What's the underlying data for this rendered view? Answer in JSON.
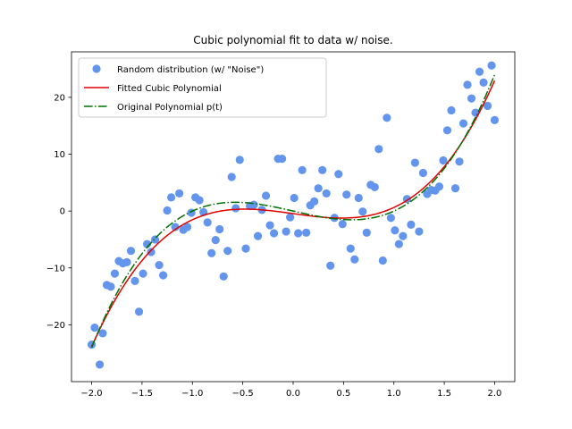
{
  "chart_data": {
    "type": "scatter",
    "title": "Cubic polynomial fit to data w/ noise.",
    "xlabel": "",
    "ylabel": "",
    "xlim": [
      -2.2,
      2.2
    ],
    "ylim": [
      -30,
      28
    ],
    "grid": false,
    "legend_position": "upper-left",
    "x_ticks": [
      -2.0,
      -1.5,
      -1.0,
      -0.5,
      0.0,
      0.5,
      1.0,
      1.5,
      2.0
    ],
    "x_tick_labels": [
      "−2.0",
      "−1.5",
      "−1.0",
      "−0.5",
      "0.0",
      "0.5",
      "1.0",
      "1.5",
      "2.0"
    ],
    "y_ticks": [
      -20,
      -10,
      0,
      10,
      20
    ],
    "y_tick_labels": [
      "−20",
      "−10",
      "0",
      "10",
      "20"
    ],
    "scatter": {
      "name": "Random distribution (w/ \"Noise\")",
      "color": "#6495ED",
      "points": [
        [
          -2.0,
          -23.5
        ],
        [
          -1.97,
          -20.5
        ],
        [
          -1.92,
          -27.0
        ],
        [
          -1.89,
          -21.5
        ],
        [
          -1.85,
          -13.0
        ],
        [
          -1.81,
          -13.3
        ],
        [
          -1.77,
          -11.0
        ],
        [
          -1.73,
          -8.8
        ],
        [
          -1.69,
          -9.2
        ],
        [
          -1.65,
          -9.0
        ],
        [
          -1.61,
          -7.0
        ],
        [
          -1.57,
          -12.3
        ],
        [
          -1.53,
          -17.7
        ],
        [
          -1.49,
          -11.0
        ],
        [
          -1.45,
          -5.8
        ],
        [
          -1.41,
          -7.2
        ],
        [
          -1.37,
          -5.0
        ],
        [
          -1.33,
          -9.5
        ],
        [
          -1.29,
          -11.3
        ],
        [
          -1.25,
          0.1
        ],
        [
          -1.21,
          2.4
        ],
        [
          -1.17,
          -2.8
        ],
        [
          -1.13,
          3.1
        ],
        [
          -1.09,
          -3.3
        ],
        [
          -1.05,
          -2.8
        ],
        [
          -1.01,
          -0.3
        ],
        [
          -0.97,
          2.4
        ],
        [
          -0.93,
          1.9
        ],
        [
          -0.89,
          -0.2
        ],
        [
          -0.85,
          -2.0
        ],
        [
          -0.81,
          -7.4
        ],
        [
          -0.77,
          -5.1
        ],
        [
          -0.73,
          -3.2
        ],
        [
          -0.69,
          -11.5
        ],
        [
          -0.65,
          -7.0
        ],
        [
          -0.61,
          6.0
        ],
        [
          -0.57,
          0.5
        ],
        [
          -0.53,
          9.0
        ],
        [
          -0.47,
          -6.6
        ],
        [
          -0.43,
          0.9
        ],
        [
          -0.39,
          1.1
        ],
        [
          -0.35,
          -4.4
        ],
        [
          -0.31,
          0.2
        ],
        [
          -0.27,
          2.7
        ],
        [
          -0.23,
          -2.5
        ],
        [
          -0.19,
          -3.9
        ],
        [
          -0.15,
          9.2
        ],
        [
          -0.11,
          9.2
        ],
        [
          -0.07,
          -3.6
        ],
        [
          -0.03,
          -1.1
        ],
        [
          0.01,
          2.3
        ],
        [
          0.05,
          -3.9
        ],
        [
          0.09,
          7.2
        ],
        [
          0.13,
          -3.8
        ],
        [
          0.17,
          1.0
        ],
        [
          0.21,
          1.7
        ],
        [
          0.25,
          4.0
        ],
        [
          0.29,
          7.2
        ],
        [
          0.33,
          3.1
        ],
        [
          0.37,
          -9.6
        ],
        [
          0.41,
          -1.2
        ],
        [
          0.45,
          6.5
        ],
        [
          0.49,
          -2.3
        ],
        [
          0.53,
          2.9
        ],
        [
          0.57,
          -6.6
        ],
        [
          0.61,
          -8.5
        ],
        [
          0.65,
          2.3
        ],
        [
          0.69,
          -0.1
        ],
        [
          0.73,
          -3.8
        ],
        [
          0.77,
          4.6
        ],
        [
          0.81,
          4.2
        ],
        [
          0.85,
          10.9
        ],
        [
          0.89,
          -8.7
        ],
        [
          0.93,
          16.4
        ],
        [
          0.97,
          -1.2
        ],
        [
          1.01,
          -3.4
        ],
        [
          1.05,
          -5.8
        ],
        [
          1.09,
          -4.4
        ],
        [
          1.13,
          2.1
        ],
        [
          1.17,
          -2.4
        ],
        [
          1.21,
          8.5
        ],
        [
          1.25,
          -3.6
        ],
        [
          1.29,
          6.7
        ],
        [
          1.33,
          3.0
        ],
        [
          1.37,
          3.7
        ],
        [
          1.41,
          3.6
        ],
        [
          1.45,
          4.3
        ],
        [
          1.49,
          8.9
        ],
        [
          1.53,
          14.2
        ],
        [
          1.57,
          17.7
        ],
        [
          1.61,
          4.0
        ],
        [
          1.65,
          8.7
        ],
        [
          1.69,
          15.4
        ],
        [
          1.73,
          22.2
        ],
        [
          1.77,
          19.8
        ],
        [
          1.81,
          17.3
        ],
        [
          1.85,
          24.5
        ],
        [
          1.89,
          22.6
        ],
        [
          1.93,
          18.5
        ],
        [
          1.97,
          25.6
        ],
        [
          2.0,
          16.0
        ]
      ]
    },
    "lines": [
      {
        "name": "Fitted Cubic Polynomial",
        "color": "#e00000",
        "style": "solid",
        "coeffs": [
          3.54,
          0.0,
          -2.46,
          -0.45
        ]
      },
      {
        "name": "Original Polynomial p(t)",
        "color": "#007000",
        "style": "dashdot",
        "coeffs": [
          4.0,
          0.0,
          -4.0,
          0.0
        ]
      }
    ]
  }
}
